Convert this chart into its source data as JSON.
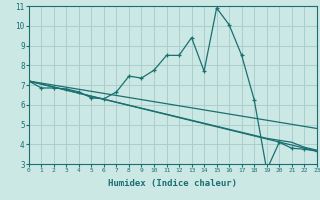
{
  "xlabel": "Humidex (Indice chaleur)",
  "bg_color": "#cce8e5",
  "grid_color": "#aacfcc",
  "line_color": "#1a7070",
  "xmin": 0,
  "xmax": 23,
  "ymin": 3,
  "ymax": 11,
  "yticks": [
    3,
    4,
    5,
    6,
    7,
    8,
    9,
    10,
    11
  ],
  "xticks": [
    0,
    1,
    2,
    3,
    4,
    5,
    6,
    7,
    8,
    9,
    10,
    11,
    12,
    13,
    14,
    15,
    16,
    17,
    18,
    19,
    20,
    21,
    22,
    23
  ],
  "line1_x": [
    0,
    1,
    2,
    3,
    4,
    5,
    6,
    7,
    8,
    9,
    10,
    11,
    12,
    13,
    14,
    15,
    16,
    17,
    18,
    19,
    20,
    21,
    22,
    23
  ],
  "line1_y": [
    7.2,
    6.85,
    6.85,
    6.8,
    6.65,
    6.35,
    6.3,
    6.65,
    7.45,
    7.35,
    7.75,
    8.5,
    8.5,
    9.4,
    7.7,
    10.9,
    10.05,
    8.5,
    6.25,
    2.7,
    4.1,
    3.8,
    3.75,
    3.65
  ],
  "line2_x": [
    0,
    23
  ],
  "line2_y": [
    7.2,
    3.65
  ],
  "line3_x": [
    0,
    23
  ],
  "line3_y": [
    7.2,
    4.8
  ],
  "line4_x": [
    0,
    19,
    21,
    22,
    23
  ],
  "line4_y": [
    7.2,
    4.3,
    4.1,
    3.85,
    3.7
  ]
}
